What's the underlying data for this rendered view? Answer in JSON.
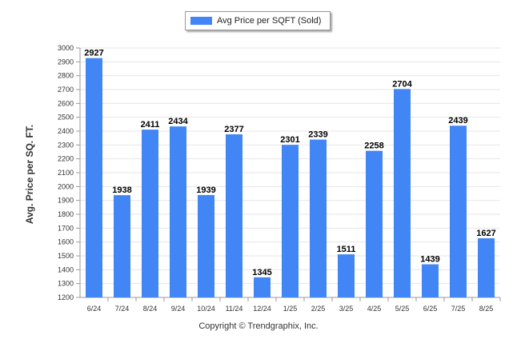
{
  "chart_data": {
    "type": "bar",
    "title": "",
    "xlabel": "",
    "ylabel": "Avg. Price per SQ. FT.",
    "categories": [
      "6/24",
      "7/24",
      "8/24",
      "9/24",
      "10/24",
      "11/24",
      "12/24",
      "1/25",
      "2/25",
      "3/25",
      "4/25",
      "5/25",
      "6/25",
      "7/25",
      "8/25"
    ],
    "series": [
      {
        "name": "Avg Price per SQFT (Sold)",
        "color": "#4285f4",
        "values": [
          2927,
          1938,
          2411,
          2434,
          1939,
          2377,
          1345,
          2301,
          2339,
          1511,
          2258,
          2704,
          1439,
          2439,
          1627
        ]
      }
    ],
    "ylim": [
      1200,
      3000
    ],
    "yticks": [
      1200,
      1300,
      1400,
      1500,
      1600,
      1700,
      1800,
      1900,
      2000,
      2100,
      2200,
      2300,
      2400,
      2500,
      2600,
      2700,
      2800,
      2900,
      3000
    ],
    "grid": true,
    "legend_position": "top-center",
    "data_labels": true
  },
  "footer": {
    "copyright": "Copyright © Trendgraphix, Inc."
  }
}
